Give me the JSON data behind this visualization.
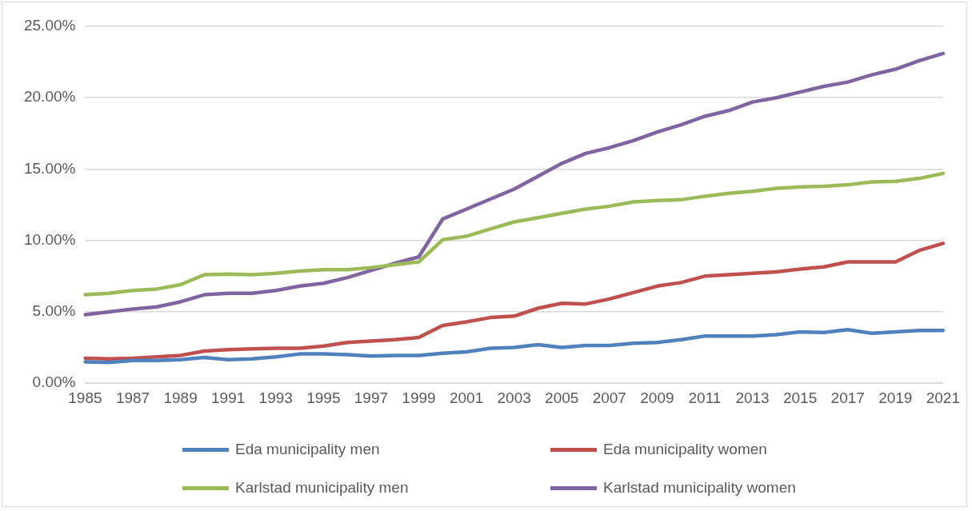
{
  "chart_data": {
    "type": "line",
    "categories": [
      "1985",
      null,
      "1987",
      null,
      "1989",
      null,
      "1991",
      null,
      "1993",
      null,
      "1995",
      null,
      "1997",
      null,
      "1999",
      null,
      "2001",
      null,
      "2003",
      null,
      "2005",
      null,
      "2007",
      null,
      "2009",
      null,
      "2011",
      null,
      "2013",
      null,
      "2015",
      null,
      "2017",
      null,
      "2019",
      null,
      "2021"
    ],
    "series": [
      {
        "name": "Eda municipality men",
        "color": "#4f81bd",
        "values": [
          1.5,
          1.45,
          1.6,
          1.6,
          1.65,
          1.8,
          1.65,
          1.7,
          1.85,
          2.05,
          2.05,
          2.0,
          1.9,
          1.95,
          1.95,
          2.1,
          2.2,
          2.45,
          2.5,
          2.7,
          2.5,
          2.65,
          2.65,
          2.8,
          2.85,
          3.05,
          3.3,
          3.3,
          3.3,
          3.4,
          3.6,
          3.55,
          3.75,
          3.5,
          3.6,
          3.7,
          3.7
        ]
      },
      {
        "name": "Eda municipality women",
        "color": "#c0504d",
        "values": [
          1.75,
          1.7,
          1.75,
          1.85,
          1.95,
          2.25,
          2.35,
          2.4,
          2.45,
          2.45,
          2.6,
          2.85,
          2.95,
          3.05,
          3.2,
          4.05,
          4.3,
          4.6,
          4.7,
          5.25,
          5.6,
          5.55,
          5.9,
          6.35,
          6.8,
          7.05,
          7.5,
          7.6,
          7.7,
          7.8,
          8.0,
          8.15,
          8.5,
          8.5,
          8.5,
          9.3,
          9.8
        ]
      },
      {
        "name": "Karlstad municipality men",
        "color": "#9bbb59",
        "values": [
          6.2,
          6.3,
          6.5,
          6.6,
          6.9,
          7.6,
          7.65,
          7.6,
          7.7,
          7.85,
          7.95,
          7.95,
          8.1,
          8.3,
          8.5,
          10.05,
          10.3,
          10.8,
          11.3,
          11.6,
          11.9,
          12.2,
          12.4,
          12.7,
          12.8,
          12.85,
          13.1,
          13.3,
          13.45,
          13.65,
          13.75,
          13.8,
          13.9,
          14.1,
          14.15,
          14.35,
          14.7
        ]
      },
      {
        "name": "Karlstad municipality women",
        "color": "#8064a2",
        "values": [
          4.8,
          5.0,
          5.2,
          5.35,
          5.7,
          6.2,
          6.3,
          6.3,
          6.5,
          6.8,
          7.0,
          7.4,
          7.9,
          8.4,
          8.85,
          11.5,
          12.2,
          12.9,
          13.6,
          14.5,
          15.4,
          16.1,
          16.5,
          17.0,
          17.6,
          18.1,
          18.7,
          19.1,
          19.7,
          20.0,
          20.4,
          20.8,
          21.1,
          21.6,
          22.0,
          22.6,
          23.1
        ]
      }
    ],
    "ylim": [
      0,
      25
    ],
    "yticks": [
      {
        "value": 0,
        "label": "0.00%"
      },
      {
        "value": 5,
        "label": "5.00%"
      },
      {
        "value": 10,
        "label": "10.00%"
      },
      {
        "value": 15,
        "label": "15.00%"
      },
      {
        "value": 20,
        "label": "20.00%"
      },
      {
        "value": 25,
        "label": "25.00%"
      }
    ],
    "grid": "y",
    "legend": "bottom",
    "marker": "none",
    "line_style": "solid"
  }
}
